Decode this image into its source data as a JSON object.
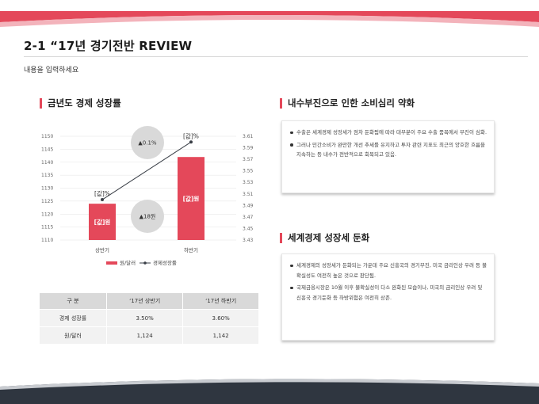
{
  "header": {
    "title": "2-1 “17년 경기전반 REVIEW",
    "subtitle": "내용을 입력하세요"
  },
  "colors": {
    "accent": "#e4485a",
    "accent_light": "#f3b3bb",
    "dark_band": "#2f3640",
    "bar_fill": "#e4485a",
    "bubble": "#d9d9d9",
    "table_head": "#d9d9d9",
    "table_cell": "#f2f2f2"
  },
  "left_section": {
    "heading": "금년도 경제 성장률",
    "bubble_top": "▲0.1%",
    "bubble_bottom": "▲18원",
    "bar_labels": [
      "[값]원",
      "[값]원"
    ],
    "line_labels": [
      "[값]%",
      "[값]%"
    ],
    "legend": {
      "bar": "원/달러",
      "line": "경제성장률"
    }
  },
  "chart_data": {
    "type": "bar",
    "categories": [
      "상반기",
      "하반기"
    ],
    "series": [
      {
        "name": "원/달러",
        "type": "bar",
        "axis": "left",
        "values": [
          1124,
          1142
        ]
      },
      {
        "name": "경제성장률",
        "type": "line",
        "axis": "right",
        "values": [
          3.5,
          3.6
        ]
      }
    ],
    "y_left": {
      "ylim": [
        1110,
        1150
      ],
      "ticks": [
        "1150",
        "1145",
        "1140",
        "1135",
        "1130",
        "1125",
        "1120",
        "1115",
        "1110"
      ]
    },
    "y_right": {
      "ylim": [
        3.43,
        3.61
      ],
      "ticks": [
        "3.61",
        "3.59",
        "3.57",
        "3.55",
        "3.53",
        "3.51",
        "3.49",
        "3.47",
        "3.45",
        "3.43"
      ]
    },
    "grid": true,
    "legend_position": "bottom"
  },
  "table": {
    "headers": [
      "구  분",
      "‘17년 상반기",
      "‘17년 하반기"
    ],
    "rows": [
      [
        "경제 성장률",
        "3.50%",
        "3.60%"
      ],
      [
        "원/달러",
        "1,124",
        "1,142"
      ]
    ]
  },
  "right_top": {
    "heading": "내수부진으로 인한 소비심리 약화",
    "items": [
      "수출은 세계경제 성장세가 점차 둔화됨에 따라 대부분이 주요 수출 품목에서 부진이 심화.",
      "그러나 민간소비가 완만한 개선 추세를 유지하고 투자 관련 지표도 최근의 양호한 흐름을 지속하는 등 내수가 전반적으로 회복되고 있음."
    ]
  },
  "right_bottom": {
    "heading": "세계경제 성장세 둔화",
    "items": [
      "세계경제의 성장세가 둔화되는 가운데 주요 신흥국의 경기부진, 미국 금리인상 우려 등 불확실성도 여전히 높은 것으로 판단됨.",
      "국제금융시장은 10월 이후 불확실성이 다소 완화된 모습이나, 미국의 금리인상 우려 및 신흥국 경기둔화 등 하방위험은 여전히 상존."
    ]
  }
}
